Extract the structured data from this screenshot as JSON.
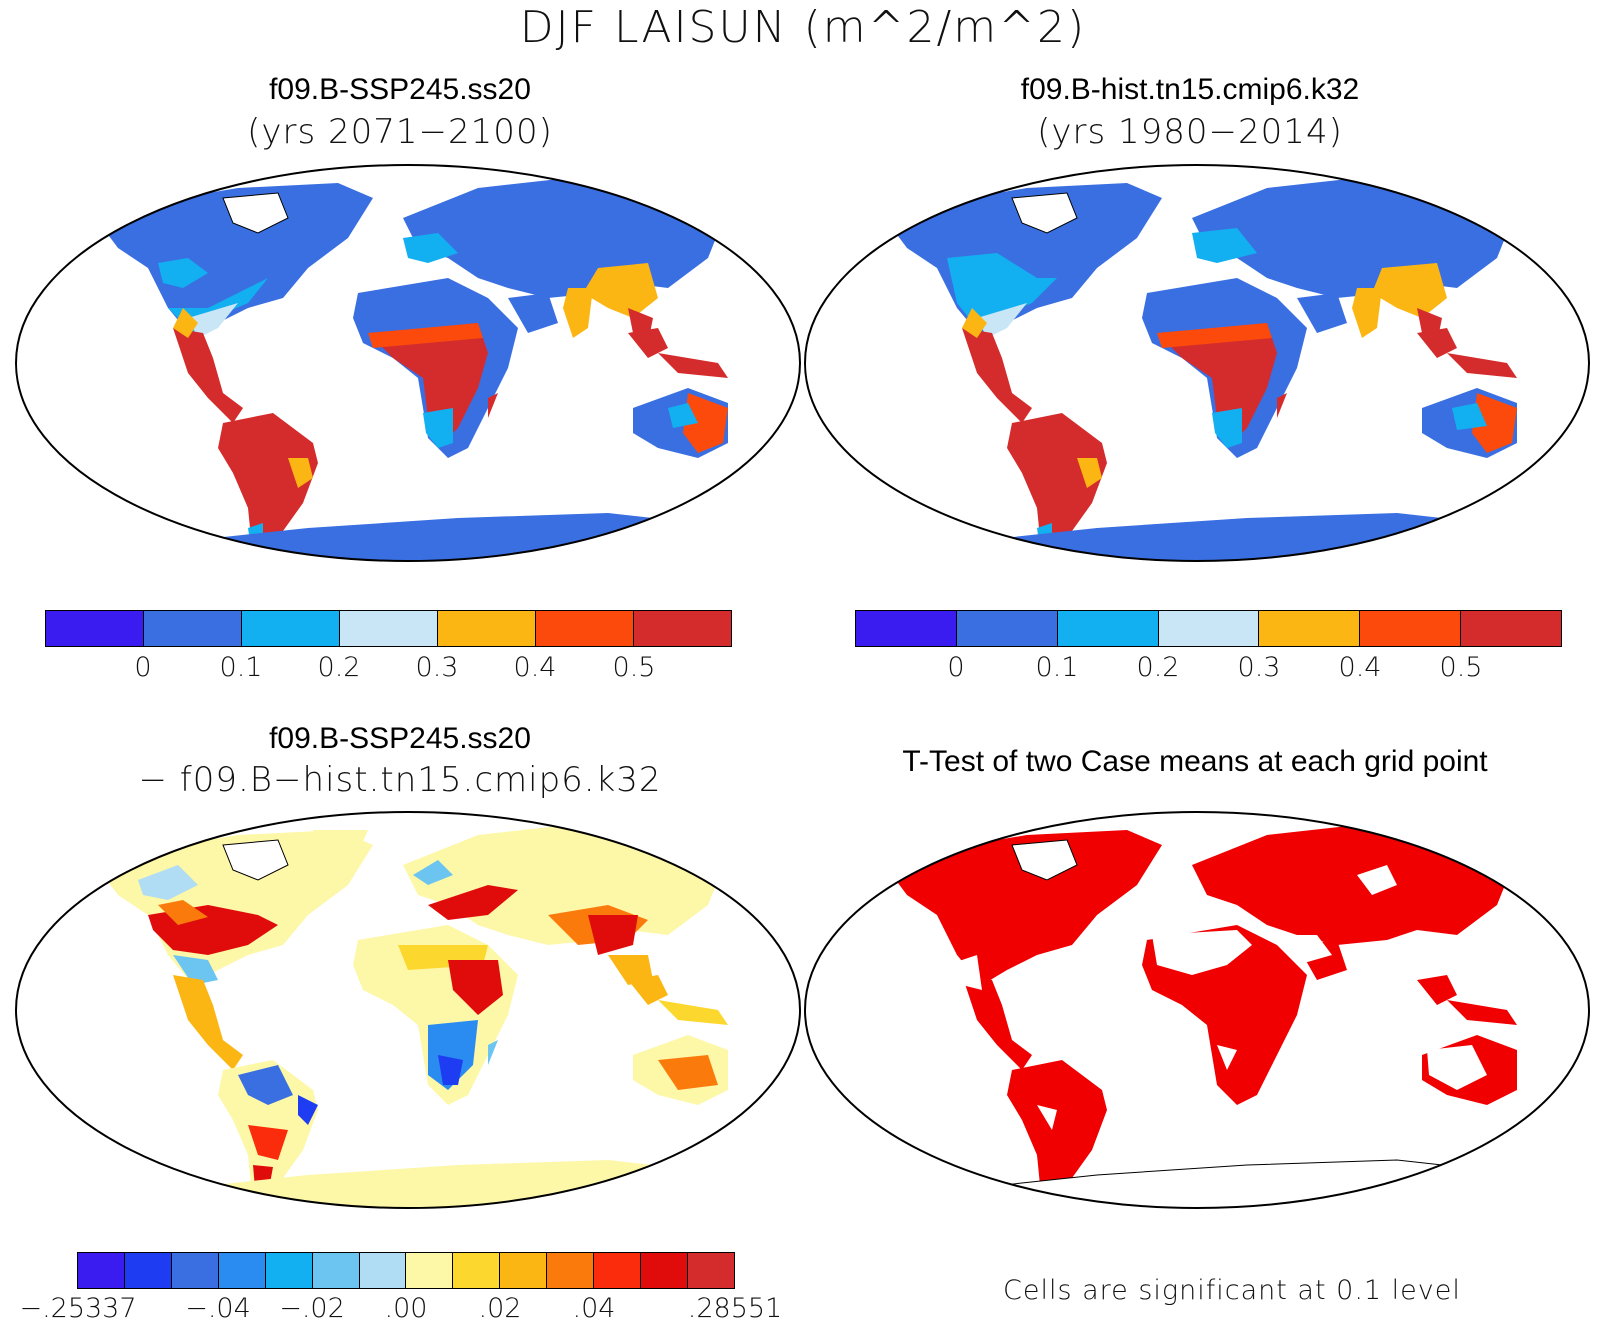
{
  "title": "DJF LAISUN (m^2/m^2)",
  "panels": [
    {
      "title": "f09.B-SSP245.ss20",
      "subtitle": "(yrs 2071−2100)",
      "colorbar": {
        "colors": [
          "#3b1cf0",
          "#3a6fe2",
          "#12b0f0",
          "#c8e6f6",
          "#fcb614",
          "#fb4a0c",
          "#d42c2c"
        ],
        "ticks": [
          "0",
          "0.1",
          "0.2",
          "0.3",
          "0.4",
          "0.5"
        ]
      }
    },
    {
      "title": "f09.B-hist.tn15.cmip6.k32",
      "subtitle": "(yrs 1980−2014)",
      "colorbar": {
        "colors": [
          "#3b1cf0",
          "#3a6fe2",
          "#12b0f0",
          "#c8e6f6",
          "#fcb614",
          "#fb4a0c",
          "#d42c2c"
        ],
        "ticks": [
          "0",
          "0.1",
          "0.2",
          "0.3",
          "0.4",
          "0.5"
        ]
      }
    },
    {
      "title": "f09.B-SSP245.ss20",
      "subtitle": "− f09.B−hist.tn15.cmip6.k32",
      "colorbar": {
        "colors": [
          "#3b1cf0",
          "#1e3cf2",
          "#3a6fe2",
          "#2a8cf0",
          "#12b0f0",
          "#6cc4f0",
          "#b0dcf4",
          "#fdf7a8",
          "#fcd82e",
          "#fcb614",
          "#fb7a0c",
          "#fb2c0c",
          "#e00c0c",
          "#d42c2c"
        ],
        "ticks": [
          "−.25337",
          "−.04",
          "−.02",
          ".00",
          ".02",
          ".04",
          ".28551"
        ]
      }
    },
    {
      "title": "T-Test of two Case means at each grid point",
      "note": "Cells are significant at 0.1 level",
      "fill": "#f00000"
    }
  ],
  "colors": {
    "ocean": "#ffffff",
    "ice_cap": "#ffffff",
    "outline": "#000000"
  }
}
